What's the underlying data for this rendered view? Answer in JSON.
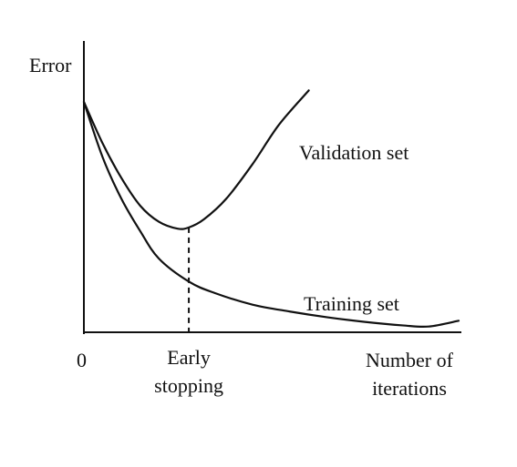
{
  "chart_data": {
    "type": "line",
    "ylabel": "Error",
    "xlabel_lines": [
      "Number of",
      "iterations"
    ],
    "origin_label": "0",
    "x_domain": [
      0,
      100
    ],
    "y_domain": [
      0,
      100
    ],
    "series": [
      {
        "name": "Validation set",
        "x": [
          0,
          5,
          10,
          15,
          20,
          25,
          28,
          32,
          38,
          45,
          52,
          60
        ],
        "values": [
          100,
          82,
          67,
          55,
          48,
          45,
          45.5,
          49,
          58,
          73,
          90,
          105
        ]
      },
      {
        "name": "Training set",
        "x": [
          0,
          5,
          10,
          15,
          20,
          28,
          35,
          45,
          55,
          65,
          75,
          85,
          92,
          100
        ],
        "values": [
          100,
          76,
          58,
          44,
          32,
          22,
          17,
          12,
          9,
          6.5,
          4.5,
          3,
          2.5,
          5
        ]
      }
    ],
    "annotation": {
      "x": 28,
      "label_lines": [
        "Early",
        "stopping"
      ]
    },
    "axis_ticks_visible": false,
    "grid": false,
    "legend": "none"
  }
}
